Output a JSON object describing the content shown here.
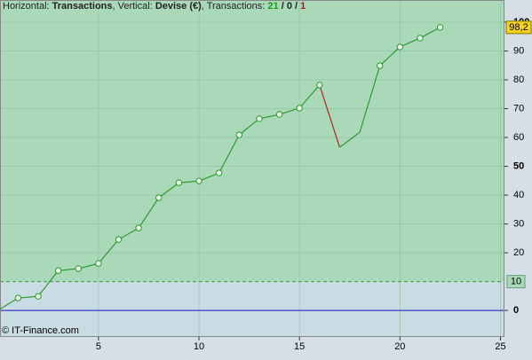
{
  "chart_data": {
    "type": "line",
    "title_parts": [
      "Horizontal:",
      "Transactions",
      ", Vertical:",
      "Devise (€)",
      ", Transactions:",
      "21",
      "/",
      "0",
      "/",
      "1"
    ],
    "footer": "© IT-Finance.com",
    "x": [
      0,
      1,
      2,
      3,
      4,
      5,
      6,
      7,
      8,
      9,
      10,
      11,
      12,
      13,
      14,
      15,
      16,
      17,
      18,
      19,
      20,
      21,
      22
    ],
    "values": [
      0,
      4.3,
      4.9,
      13.8,
      14.5,
      16.3,
      24.6,
      28.6,
      39.1,
      44.3,
      44.9,
      47.7,
      60.9,
      66.5,
      68.0,
      70.2,
      78.2,
      56.6,
      61.8,
      84.9,
      91.4,
      94.5,
      98.2
    ],
    "value_labels": [
      null,
      null,
      null,
      null,
      null,
      null,
      null,
      null,
      null,
      null,
      null,
      null,
      null,
      null,
      null,
      null,
      null,
      null,
      null,
      null,
      null,
      null,
      "98,2"
    ],
    "markers": [
      false,
      true,
      true,
      true,
      true,
      true,
      true,
      true,
      true,
      true,
      true,
      true,
      true,
      true,
      true,
      true,
      true,
      false,
      false,
      true,
      true,
      true,
      true
    ],
    "color": "#2e9a2e",
    "down_color": "#b02222",
    "threshold": 10,
    "baseline": 0,
    "xlim": [
      0.1,
      25.2
    ],
    "xticks": [
      5,
      10,
      15,
      20,
      25
    ],
    "ylim": [
      -9.2,
      107.7
    ],
    "yticks": [
      0,
      20,
      30,
      40,
      50,
      60,
      70,
      80,
      90,
      100
    ],
    "grid": true
  }
}
